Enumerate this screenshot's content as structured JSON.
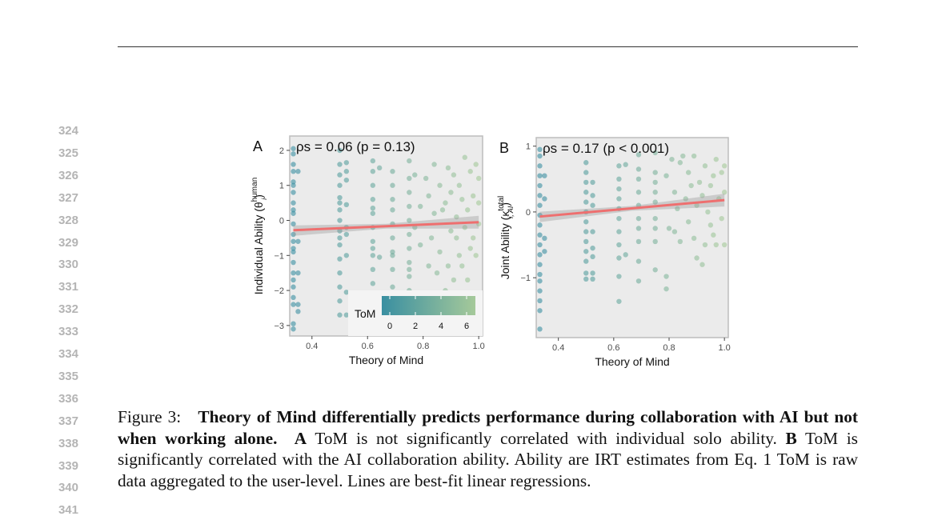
{
  "line_numbers": [
    "324",
    "325",
    "326",
    "327",
    "328",
    "329",
    "330",
    "331",
    "332",
    "333",
    "334",
    "335",
    "336",
    "337",
    "338",
    "339",
    "340",
    "341"
  ],
  "caption": {
    "label": "Figure 3:",
    "bold": "Theory of Mind differentially predicts performance during collaboration with AI but not when working alone.",
    "a_label": "A",
    "a_text": "ToM is not significantly correlated with individual solo ability.",
    "b_label": "B",
    "b_text": "ToM is significantly correlated with the AI collaboration ability. Ability are IRT estimates from Eq. 1 ToM is raw data aggregated to the user-level. Lines are best-fit linear regressions."
  },
  "colors": {
    "low": "#3a8fa1",
    "high": "#a5c99a",
    "line": "#ee6f6f",
    "panel_bg": "#ebebeb"
  },
  "chart_data": [
    {
      "type": "scatter",
      "panel": "A",
      "annotation": "ρs = 0.06 (p = 0.13)",
      "xlabel": "Theory of Mind",
      "ylabel": "Individual Ability (θ",
      "ylabel_sup": "human",
      "ylabel_sub": "i",
      "xlim": [
        0.32,
        1.014
      ],
      "ylim": [
        -3.3,
        2.41
      ],
      "xticks": [
        "0.4",
        "0.6",
        "0.8",
        "1.0"
      ],
      "yticks": [
        "−3",
        "−2",
        "−1",
        "0",
        "1",
        "2"
      ],
      "regression": {
        "x": [
          0.333,
          1.0
        ],
        "y": [
          -0.28,
          -0.05
        ]
      },
      "legend": {
        "title": "ToM",
        "ticks": [
          "0",
          "2",
          "4",
          "6"
        ],
        "range": [
          0,
          7
        ],
        "placement": "bottom-right"
      },
      "columns": [
        {
          "x": 0.333,
          "y": [
            -3.1,
            -2.95,
            -2.4,
            -2.2,
            -1.9,
            -1.7,
            -1.5,
            -1.2,
            -0.9,
            -0.8,
            -0.6,
            -0.4,
            -0.1,
            0.2,
            0.3,
            0.5,
            0.8,
            1.0,
            1.1,
            1.4,
            1.6,
            1.9,
            2.05
          ]
        },
        {
          "x": 0.35,
          "y": [
            -2.6,
            -2.4,
            -1.5,
            -0.6,
            1.4
          ]
        },
        {
          "x": 0.5,
          "y": [
            -2.7,
            -2.3,
            -1.9,
            -1.5,
            -1.1,
            -0.7,
            -0.5,
            -0.3,
            0,
            0.3,
            0.5,
            0.65,
            1.0,
            1.3,
            1.6,
            2.0
          ]
        },
        {
          "x": 0.524,
          "y": [
            -2.7,
            -2.05,
            -1.0,
            -0.4,
            -0.2,
            0.45,
            1.15,
            1.4,
            1.65
          ]
        },
        {
          "x": 0.619,
          "y": [
            -2.3,
            -1.8,
            -1.4,
            -1.0,
            -0.8,
            -0.6,
            -0.2,
            0.2,
            0.35,
            0.6,
            1.0,
            1.4,
            1.7
          ]
        },
        {
          "x": 0.643,
          "y": [
            -1.05,
            1.5
          ]
        },
        {
          "x": 0.69,
          "y": [
            -2.1,
            -1.9,
            -1.4,
            -1.0,
            -0.9,
            -0.5,
            -0.1,
            0.3,
            0.6,
            1.0,
            1.4
          ]
        },
        {
          "x": 0.75,
          "y": [
            -2.0,
            -1.6,
            -1.4,
            -1.2,
            -0.8,
            -0.4,
            0.0,
            0.4,
            0.8,
            1.2,
            1.7
          ]
        }
      ],
      "points": [
        [
          0.77,
          1.3
        ],
        [
          0.77,
          -0.2
        ],
        [
          0.79,
          -0.7
        ],
        [
          0.79,
          0.4
        ],
        [
          0.8,
          -2.1
        ],
        [
          0.81,
          1.2
        ],
        [
          0.82,
          0.7
        ],
        [
          0.82,
          -1.3
        ],
        [
          0.83,
          -0.5
        ],
        [
          0.84,
          1.6
        ],
        [
          0.84,
          0.2
        ],
        [
          0.85,
          -1.5
        ],
        [
          0.86,
          1.0
        ],
        [
          0.86,
          -0.9
        ],
        [
          0.87,
          0.3
        ],
        [
          0.88,
          -2.0
        ],
        [
          0.88,
          0.5
        ],
        [
          0.89,
          1.5
        ],
        [
          0.89,
          -1.3
        ],
        [
          0.9,
          -0.3
        ],
        [
          0.9,
          0.8
        ],
        [
          0.91,
          1.3
        ],
        [
          0.91,
          -1.7
        ],
        [
          0.92,
          -0.5
        ],
        [
          0.92,
          0.1
        ],
        [
          0.93,
          1.0
        ],
        [
          0.93,
          -1.0
        ],
        [
          0.94,
          0.6
        ],
        [
          0.94,
          -1.3
        ],
        [
          0.95,
          1.8
        ],
        [
          0.95,
          -0.2
        ],
        [
          0.96,
          0.3
        ],
        [
          0.96,
          -1.7
        ],
        [
          0.97,
          1.4
        ],
        [
          0.97,
          -0.8
        ],
        [
          0.98,
          0.7
        ],
        [
          0.98,
          -0.5
        ],
        [
          0.99,
          1.6
        ],
        [
          0.99,
          -1.0
        ],
        [
          1.0,
          0.5
        ],
        [
          1.0,
          -0.1
        ],
        [
          1.0,
          1.2
        ]
      ]
    },
    {
      "type": "scatter",
      "panel": "B",
      "annotation": "ρs = 0.17 (p < 0.001)",
      "xlabel": "Theory of Mind",
      "ylabel": "Joint Ability (κ",
      "ylabel_sup": "total",
      "ylabel_sub": "i, AI",
      "xlim": [
        0.32,
        1.014
      ],
      "ylim": [
        -1.91,
        1.13
      ],
      "xticks": [
        "0.4",
        "0.6",
        "0.8",
        "1.0"
      ],
      "yticks": [
        "−1",
        "0",
        "1"
      ],
      "regression": {
        "x": [
          0.333,
          1.0
        ],
        "y": [
          -0.07,
          0.18
        ]
      },
      "columns": [
        {
          "x": 0.333,
          "y": [
            -1.78,
            -1.5,
            -1.35,
            -1.2,
            -1.05,
            -0.95,
            -0.8,
            -0.65,
            -0.5,
            -0.35,
            -0.2,
            -0.05,
            0.1,
            0.25,
            0.4,
            0.55,
            0.7,
            0.85,
            0.95
          ]
        },
        {
          "x": 0.35,
          "y": [
            -0.6,
            -0.4,
            0.2,
            0.55
          ]
        },
        {
          "x": 0.5,
          "y": [
            -1.02,
            -0.93,
            -0.75,
            -0.6,
            -0.45,
            -0.3,
            -0.15,
            0.0,
            0.15,
            0.3,
            0.45,
            0.6,
            0.75
          ]
        },
        {
          "x": 0.524,
          "y": [
            -1.02,
            -0.93,
            -0.68,
            -0.55,
            -0.3,
            0.1,
            0.25,
            0.45
          ]
        },
        {
          "x": 0.619,
          "y": [
            -1.36,
            -0.98,
            -0.7,
            -0.5,
            -0.3,
            -0.1,
            0.05,
            0.2,
            0.35,
            0.5,
            0.7
          ]
        },
        {
          "x": 0.643,
          "y": [
            -0.65,
            0.72
          ]
        },
        {
          "x": 0.69,
          "y": [
            -1.05,
            -0.75,
            -0.45,
            -0.25,
            -0.1,
            0.1,
            0.3,
            0.5,
            0.65,
            0.87
          ]
        },
        {
          "x": 0.75,
          "y": [
            -0.88,
            -0.45,
            -0.25,
            -0.1,
            0.15,
            0.3,
            0.45,
            0.6,
            0.9
          ]
        }
      ],
      "points": [
        [
          0.79,
          -1.17
        ],
        [
          0.79,
          -0.98
        ],
        [
          0.79,
          0.55
        ],
        [
          0.8,
          -0.25
        ],
        [
          0.81,
          0.8
        ],
        [
          0.82,
          0.3
        ],
        [
          0.82,
          -0.3
        ],
        [
          0.83,
          0.05
        ],
        [
          0.84,
          0.75
        ],
        [
          0.84,
          -0.45
        ],
        [
          0.85,
          0.85
        ],
        [
          0.86,
          0.2
        ],
        [
          0.87,
          -0.15
        ],
        [
          0.87,
          0.6
        ],
        [
          0.88,
          0.4
        ],
        [
          0.89,
          -0.4
        ],
        [
          0.89,
          0.85
        ],
        [
          0.9,
          -0.7
        ],
        [
          0.9,
          0.1
        ],
        [
          0.91,
          0.45
        ],
        [
          0.92,
          -0.8
        ],
        [
          0.92,
          0.25
        ],
        [
          0.93,
          -0.5
        ],
        [
          0.93,
          0.7
        ],
        [
          0.94,
          0.0
        ],
        [
          0.95,
          0.4
        ],
        [
          0.95,
          -0.2
        ],
        [
          0.96,
          0.55
        ],
        [
          0.96,
          -0.35
        ],
        [
          0.97,
          0.8
        ],
        [
          0.97,
          -0.5
        ],
        [
          0.98,
          0.2
        ],
        [
          0.99,
          0.6
        ],
        [
          0.99,
          -0.1
        ],
        [
          1.0,
          0.3
        ],
        [
          1.0,
          -0.5
        ],
        [
          1.0,
          0.7
        ]
      ]
    }
  ]
}
